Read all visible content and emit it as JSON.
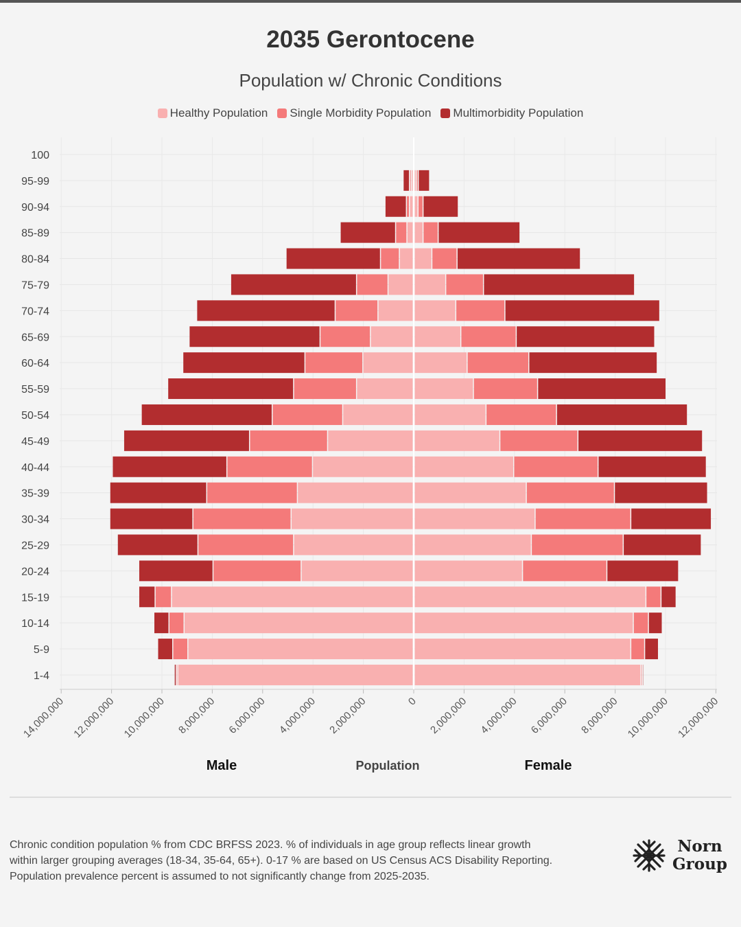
{
  "title": "2035 Gerontocene",
  "subtitle": "Population w/ Chronic Conditions",
  "legend": [
    {
      "label": "Healthy Population",
      "color": "#f9b0b0"
    },
    {
      "label": "Single Morbidity Population",
      "color": "#f47a7a"
    },
    {
      "label": "Multimorbidity Population",
      "color": "#b22d2f"
    }
  ],
  "labels": {
    "male": "Male",
    "female": "Female",
    "population": "Population"
  },
  "footnote": [
    "Chronic condition population % from CDC BRFSS 2023. % of individuals in age group reflects linear growth",
    "within larger grouping averages (18-34, 35-64, 65+). 0-17 % are based on US Census ACS Disability Reporting.",
    "Population prevalence percent is assumed to not significantly change from 2025-2035."
  ],
  "logo": {
    "line1": "Norn",
    "line2": "Group",
    "icon": "snowflake-knot-icon"
  },
  "chart_data": {
    "type": "bar",
    "orientation": "horizontal",
    "stacked": true,
    "diverging": true,
    "categories": [
      "100",
      "95-99",
      "90-94",
      "85-89",
      "80-84",
      "75-79",
      "70-74",
      "65-69",
      "60-64",
      "55-59",
      "50-54",
      "45-49",
      "40-44",
      "35-39",
      "30-34",
      "25-29",
      "20-24",
      "15-19",
      "10-14",
      "5-9",
      "1-4"
    ],
    "x_ticks": [
      "14,000,000",
      "12,000,000",
      "10,000,000",
      "8,000,000",
      "6,000,000",
      "4,000,000",
      "2,000,000",
      "0",
      "2,000,000",
      "4,000,000",
      "6,000,000",
      "8,000,000",
      "10,000,000",
      "12,000,000"
    ],
    "xlim": [
      -14000000,
      12000000
    ],
    "grid": true,
    "legend_position": "top",
    "male": {
      "healthy": [
        20000,
        80000,
        150000,
        250000,
        550000,
        1000000,
        1400000,
        1700000,
        2000000,
        2250000,
        2800000,
        3400000,
        4000000,
        4600000,
        4850000,
        4750000,
        4450000,
        9600000,
        9100000,
        8950000,
        9350000
      ],
      "single": [
        20000,
        70000,
        120000,
        450000,
        750000,
        1250000,
        1700000,
        2000000,
        2300000,
        2500000,
        2800000,
        3100000,
        3400000,
        3600000,
        3900000,
        3800000,
        3500000,
        650000,
        600000,
        600000,
        60000
      ],
      "multi": [
        30000,
        250000,
        850000,
        2200000,
        3750000,
        5000000,
        5500000,
        5200000,
        4850000,
        5000000,
        5200000,
        5000000,
        4550000,
        3850000,
        3300000,
        3200000,
        2950000,
        650000,
        600000,
        600000,
        80000
      ]
    },
    "female": {
      "healthy": [
        20000,
        80000,
        150000,
        350000,
        700000,
        1250000,
        1650000,
        1850000,
        2100000,
        2350000,
        2850000,
        3400000,
        3950000,
        4450000,
        4800000,
        4650000,
        4300000,
        9200000,
        8700000,
        8600000,
        9000000
      ],
      "single": [
        20000,
        80000,
        200000,
        600000,
        1000000,
        1500000,
        1950000,
        2200000,
        2450000,
        2550000,
        2800000,
        3100000,
        3350000,
        3500000,
        3800000,
        3650000,
        3350000,
        600000,
        600000,
        550000,
        60000
      ],
      "multi": [
        40000,
        450000,
        1400000,
        3250000,
        4900000,
        6000000,
        6150000,
        5500000,
        5100000,
        5100000,
        5200000,
        4950000,
        4300000,
        3700000,
        3200000,
        3100000,
        2850000,
        600000,
        550000,
        550000,
        50000
      ]
    }
  }
}
